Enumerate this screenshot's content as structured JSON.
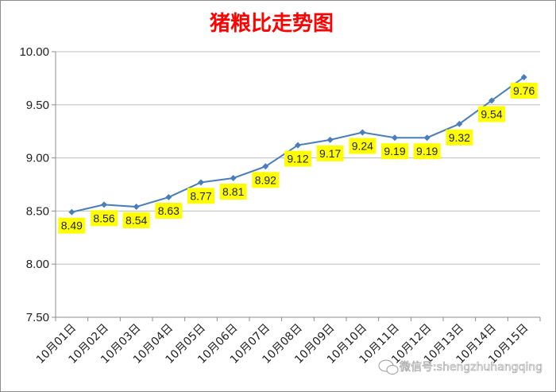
{
  "chart_data": {
    "type": "line",
    "title": "猪粮比走势图",
    "xlabel": "",
    "ylabel": "",
    "categories": [
      "10月01日",
      "10月02日",
      "10月03日",
      "10月04日",
      "10月05日",
      "10月06日",
      "10月07日",
      "10月08日",
      "10月09日",
      "10月10日",
      "10月11日",
      "10月12日",
      "10月13日",
      "10月14日",
      "10月15日"
    ],
    "series": [
      {
        "values": [
          8.49,
          8.56,
          8.54,
          8.63,
          8.77,
          8.81,
          8.92,
          9.12,
          9.17,
          9.24,
          9.19,
          9.19,
          9.32,
          9.54,
          9.76
        ]
      }
    ],
    "data_labels": [
      "8.49",
      "8.56",
      "8.54",
      "8.63",
      "8.77",
      "8.81",
      "8.92",
      "9.12",
      "9.17",
      "9.24",
      "9.19",
      "9.19",
      "9.32",
      "9.54",
      "9.76"
    ],
    "ylim": [
      7.5,
      10.0
    ],
    "yticks": [
      "7.50",
      "8.00",
      "8.50",
      "9.00",
      "9.50",
      "10.00"
    ],
    "grid": true,
    "legend": "none",
    "colors": {
      "title": "#ff0000",
      "line": "#4a7ebb",
      "label_bg": "#ffff00"
    },
    "watermark": "微信号:shengzhuhangqing"
  }
}
